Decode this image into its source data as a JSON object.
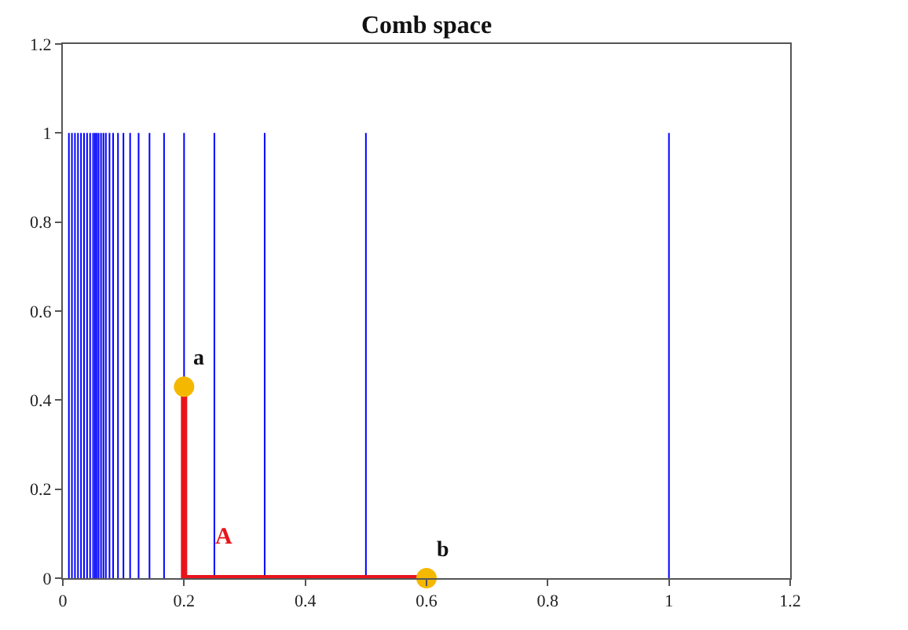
{
  "chart_data": {
    "type": "line",
    "title": "Comb space",
    "xlim": [
      0,
      1.2
    ],
    "xticks": [
      0,
      0.2,
      0.4,
      0.6,
      0.8,
      1,
      1.2
    ],
    "ylim": [
      0,
      1.2
    ],
    "yticks": [
      0,
      0.2,
      0.4,
      0.6,
      0.8,
      1,
      1.2
    ],
    "line_style": "solid",
    "series": [
      {
        "color": "#0000ff",
        "x": [
          1,
          1
        ],
        "values": [
          0,
          1
        ]
      },
      {
        "color": "#0000ff",
        "x": [
          0.5,
          0.5
        ],
        "values": [
          0,
          1
        ]
      },
      {
        "color": "#0000ff",
        "x": [
          0.333,
          0.333
        ],
        "values": [
          0,
          1
        ]
      },
      {
        "color": "#0000ff",
        "x": [
          0.25,
          0.25
        ],
        "values": [
          0,
          1
        ]
      },
      {
        "color": "#0000ff",
        "x": [
          0.2,
          0.2
        ],
        "values": [
          0.43,
          1
        ]
      },
      {
        "color": "#0000ff",
        "x": [
          0.167,
          0.167
        ],
        "values": [
          0,
          1
        ]
      },
      {
        "color": "#0000ff",
        "x": [
          0.143,
          0.143
        ],
        "values": [
          0,
          1
        ]
      },
      {
        "color": "#0000ff",
        "x": [
          0.125,
          0.125
        ],
        "values": [
          0,
          1
        ]
      },
      {
        "color": "#0000ff",
        "x": [
          0.111,
          0.111
        ],
        "values": [
          0,
          1
        ]
      },
      {
        "color": "#0000ff",
        "x": [
          0.1,
          0.1
        ],
        "values": [
          0,
          1
        ]
      },
      {
        "color": "#0000ff",
        "x": [
          0.091,
          0.091
        ],
        "values": [
          0,
          1
        ]
      },
      {
        "color": "#0000ff",
        "x": [
          0.083,
          0.083
        ],
        "values": [
          0,
          1
        ]
      },
      {
        "color": "#0000ff",
        "x": [
          0.077,
          0.077
        ],
        "values": [
          0,
          1
        ]
      },
      {
        "color": "#0000ff",
        "x": [
          0.071,
          0.071
        ],
        "values": [
          0,
          1
        ]
      },
      {
        "color": "#0000ff",
        "x": [
          0.067,
          0.067
        ],
        "values": [
          0,
          1
        ]
      },
      {
        "color": "#0000ff",
        "x": [
          0.063,
          0.063
        ],
        "values": [
          0,
          1
        ]
      },
      {
        "color": "#0000ff",
        "x": [
          0.059,
          0.059
        ],
        "values": [
          0,
          1
        ]
      },
      {
        "color": "#0000ff",
        "x": [
          0.056,
          0.056
        ],
        "values": [
          0,
          1
        ]
      },
      {
        "color": "#0000ff",
        "x": [
          0.053,
          0.053
        ],
        "values": [
          0,
          1
        ]
      },
      {
        "color": "#0000ff",
        "x": [
          0.05,
          0.05
        ],
        "values": [
          0,
          1
        ]
      },
      {
        "color": "#0000ff",
        "x": [
          0.045,
          0.045
        ],
        "values": [
          0,
          1
        ]
      },
      {
        "color": "#0000ff",
        "x": [
          0.04,
          0.04
        ],
        "values": [
          0,
          1
        ]
      },
      {
        "color": "#0000ff",
        "x": [
          0.035,
          0.035
        ],
        "values": [
          0,
          1
        ]
      },
      {
        "color": "#0000ff",
        "x": [
          0.03,
          0.03
        ],
        "values": [
          0,
          1
        ]
      },
      {
        "color": "#0000ff",
        "x": [
          0.025,
          0.025
        ],
        "values": [
          0,
          1
        ]
      },
      {
        "color": "#0000ff",
        "x": [
          0.02,
          0.02
        ],
        "values": [
          0,
          1
        ]
      },
      {
        "color": "#0000ff",
        "x": [
          0.015,
          0.015
        ],
        "values": [
          0,
          1
        ]
      },
      {
        "color": "#0000ff",
        "x": [
          0.01,
          0.01
        ],
        "values": [
          0,
          1
        ]
      },
      {
        "name": "A",
        "color": "#e8141c",
        "x": [
          0.2,
          0.2,
          0.6
        ],
        "values": [
          0.43,
          0,
          0
        ]
      },
      {
        "type": "scatter",
        "marker": "circle",
        "color": "#f5b800",
        "x": [
          0.2,
          0.6
        ],
        "values": [
          0.43,
          0
        ]
      }
    ],
    "annotations": [
      {
        "text": "a",
        "x": 0.2,
        "y": 0.43
      },
      {
        "text": "b",
        "x": 0.6,
        "y": 0
      }
    ]
  }
}
